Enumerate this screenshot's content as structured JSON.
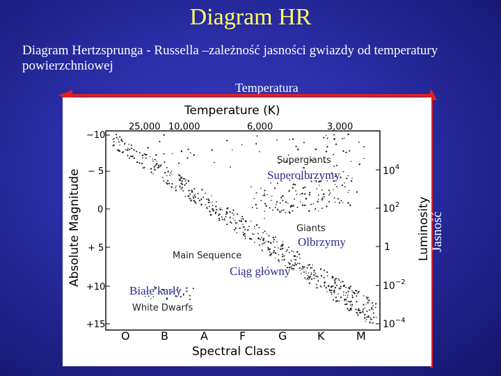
{
  "slide": {
    "title": "Diagram HR",
    "subtitle": "Diagram Hertzsprunga - Russella –zależność jasności gwiazdy od temperatury powierzchniowej",
    "temperature_label": "Temperatura",
    "luminosity_label": "Jasność"
  },
  "overlays": {
    "supergiants_pl": "Superolbrzymy",
    "giants_pl": "Olbrzymy",
    "main_sequence_pl": "Ciąg główny",
    "white_dwarfs_pl": "Białe karły"
  },
  "figure": {
    "top_title": "Temperature (K)",
    "temp_ticks": [
      "25,000",
      "10,000",
      "6,000",
      "3,000"
    ],
    "left_axis_label": "Absolute Magnitude",
    "mag_ticks": [
      "−10",
      "− 5",
      "0",
      "+ 5",
      "+10",
      "+15"
    ],
    "right_axis_label": "Luminosity",
    "lum_ticks": [
      {
        "base": "10",
        "exp": "4"
      },
      {
        "base": "10",
        "exp": "2"
      },
      {
        "base": "1",
        "exp": ""
      },
      {
        "base": "10",
        "exp": "−2"
      },
      {
        "base": "10",
        "exp": "−4"
      }
    ],
    "bottom_axis_label": "Spectral Class",
    "spectral_classes": [
      "O",
      "B",
      "A",
      "F",
      "G",
      "K",
      "M"
    ],
    "region_labels": {
      "supergiants": "Supergiants",
      "giants": "Giants",
      "main_sequence": "Main Sequence",
      "white_dwarfs": "White Dwarfs"
    }
  },
  "colors": {
    "background": "#2a2da6",
    "title": "#ffff66",
    "arrow": "#e02020",
    "overlay_text": "#2a2a8a"
  }
}
